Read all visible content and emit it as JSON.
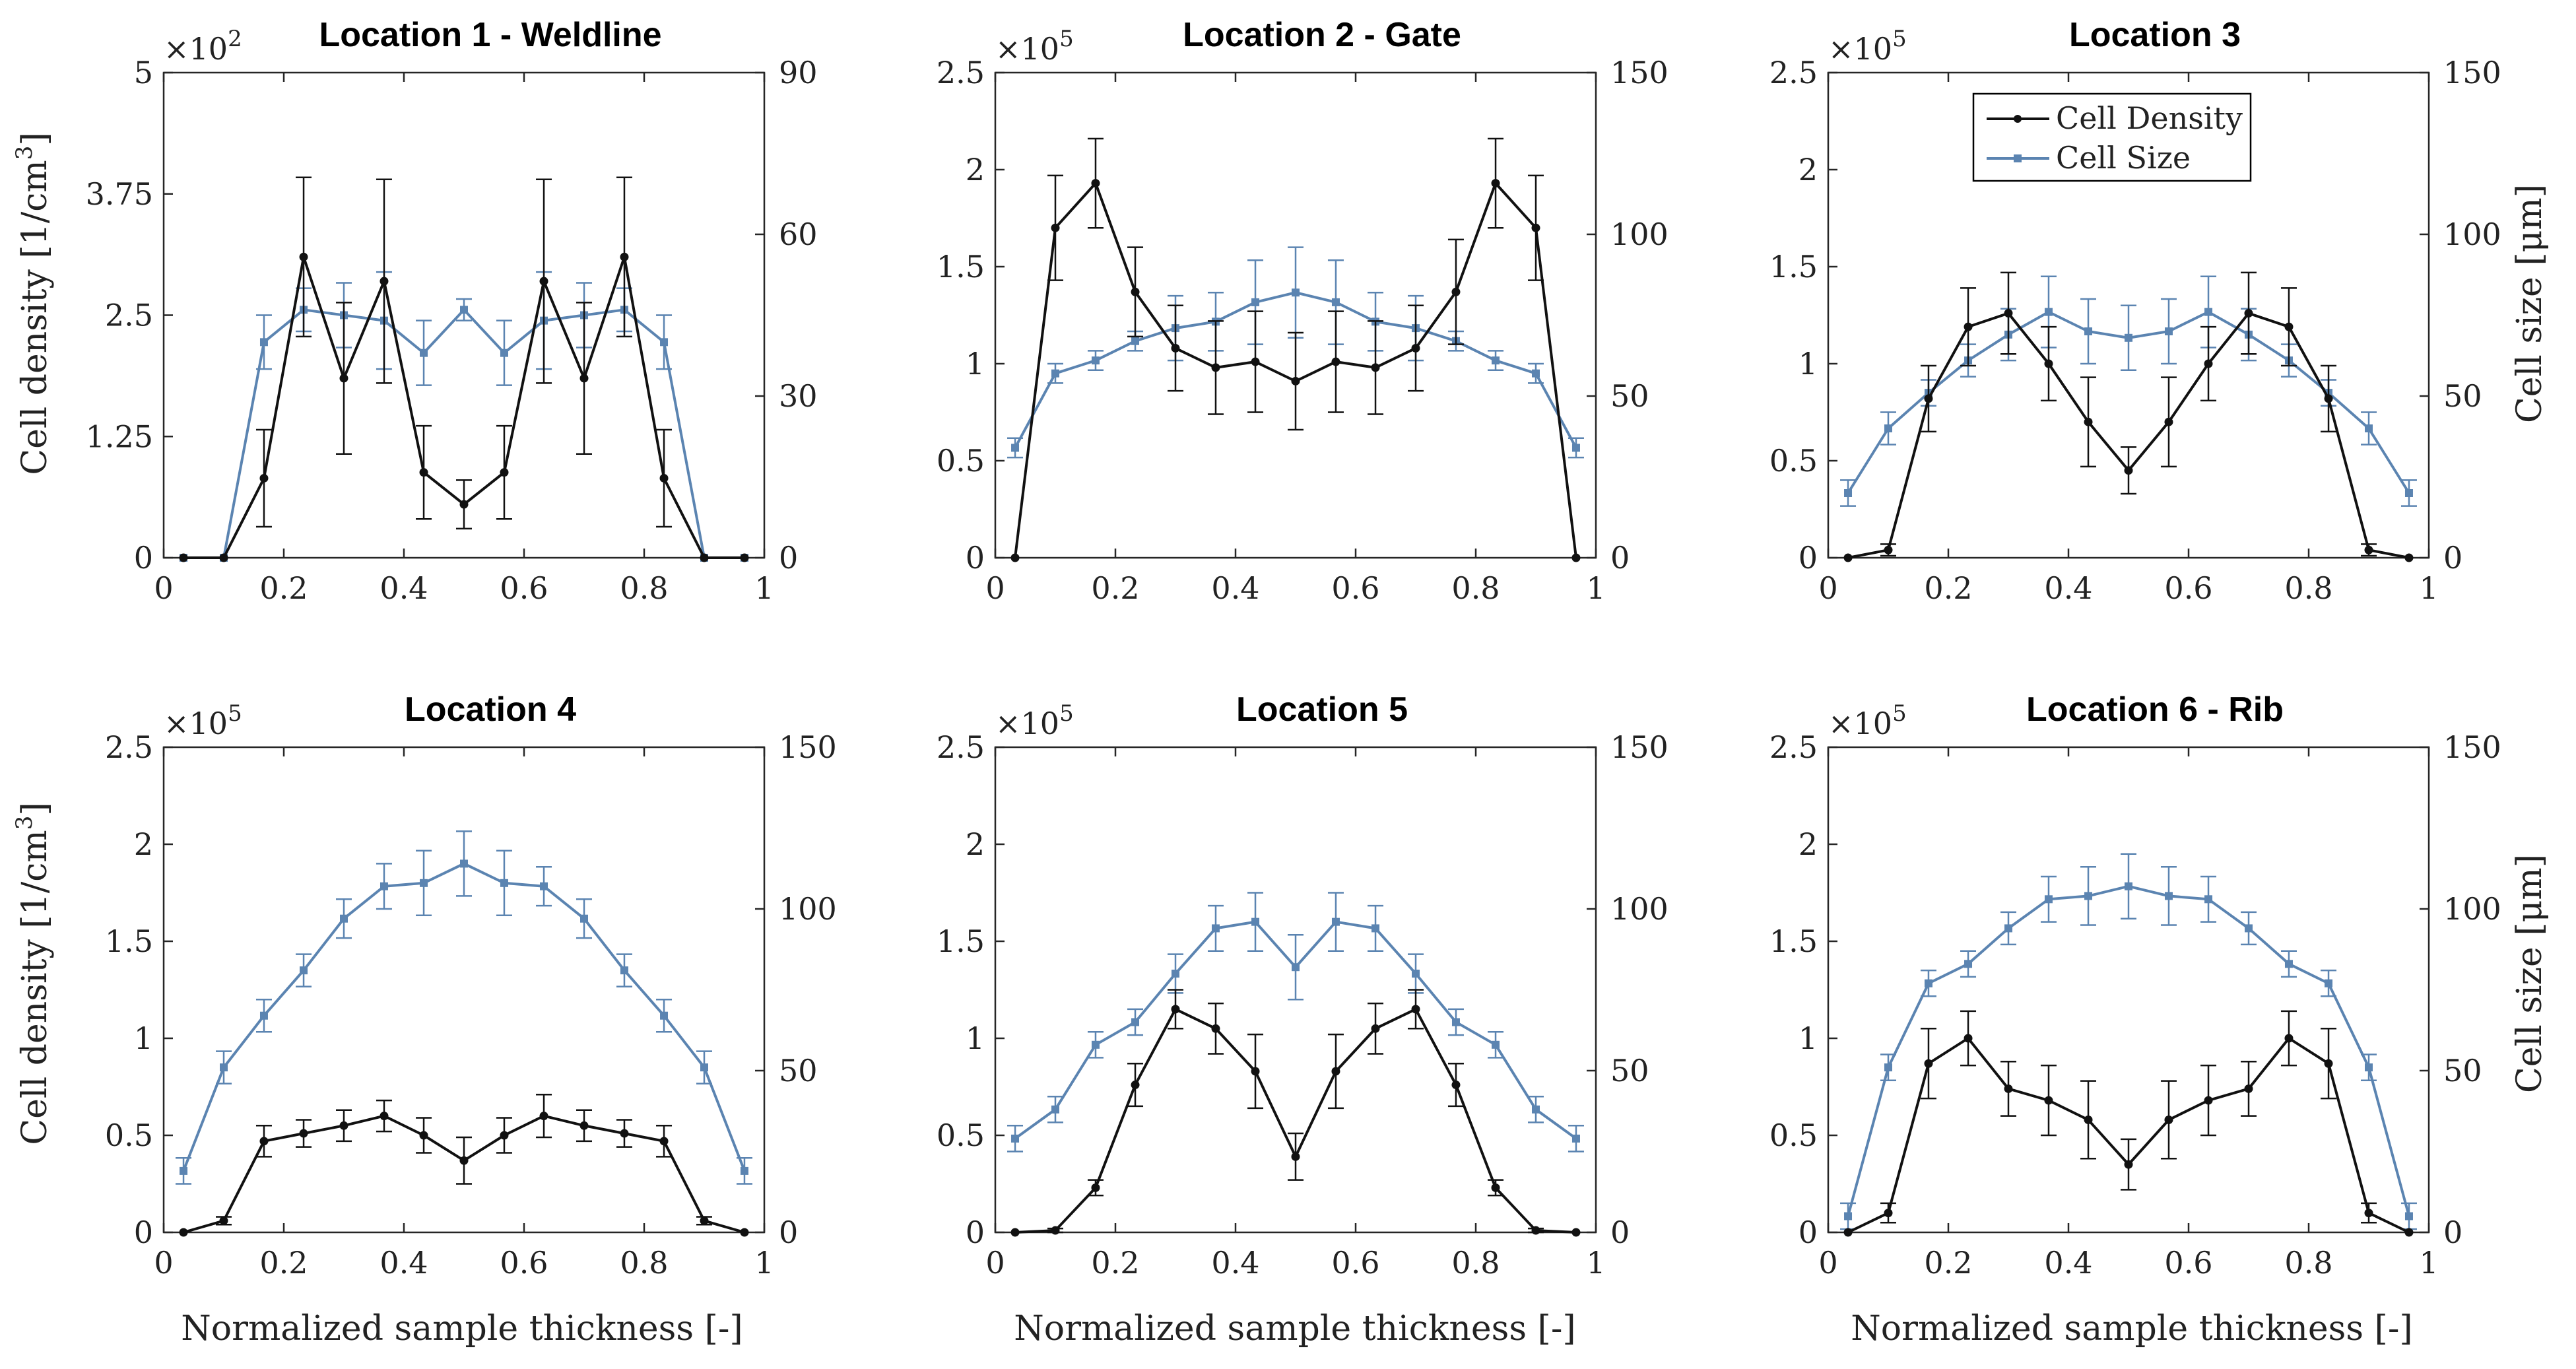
{
  "figure": {
    "x_label": "Normalized sample thickness [-]",
    "left_label": "Cell density [1/cm",
    "left_label_sup": "3",
    "left_label_end": "]",
    "right_label": "Cell size [μm]",
    "colors": {
      "density": "#111111",
      "size": "#5b84b1"
    },
    "legend": {
      "density": "Cell Density",
      "size": "Cell Size"
    }
  },
  "chart_data": [
    {
      "type": "line",
      "title": "Location 1 - Weldline",
      "multiplier": "×10",
      "exponent": "2",
      "xlim": [
        0,
        1
      ],
      "x_ticks": [
        0,
        0.2,
        0.4,
        0.6,
        0.8,
        1
      ],
      "x_tick_labels": [
        "0",
        "0.2",
        "0.4",
        "0.6",
        "0.8",
        "1"
      ],
      "ylim_left": [
        0,
        5
      ],
      "y_ticks_left": [
        0,
        1.25,
        2.5,
        3.75,
        5
      ],
      "y_tick_labels_left": [
        "0",
        "1.25",
        "2.5",
        "3.75",
        "5"
      ],
      "ylim_right": [
        0,
        90
      ],
      "y_ticks_right": [
        0,
        30,
        60,
        90
      ],
      "y_tick_labels_right": [
        "0",
        "30",
        "60",
        "90"
      ],
      "x": [
        0.033,
        0.1,
        0.167,
        0.233,
        0.3,
        0.367,
        0.433,
        0.5,
        0.567,
        0.633,
        0.7,
        0.767,
        0.833,
        0.9,
        0.967
      ],
      "series": [
        {
          "name": "Cell Density",
          "axis": "left",
          "values": [
            0,
            0,
            0.82,
            3.1,
            1.85,
            2.85,
            0.88,
            0.55,
            0.88,
            2.85,
            1.85,
            3.1,
            0.82,
            0,
            0
          ],
          "errors": [
            0,
            0,
            0.5,
            0.82,
            0.78,
            1.05,
            0.48,
            0.25,
            0.48,
            1.05,
            0.78,
            0.82,
            0.5,
            0,
            0
          ]
        },
        {
          "name": "Cell Size",
          "axis": "right",
          "values": [
            0,
            0,
            40,
            46,
            45,
            44,
            38,
            46,
            38,
            44,
            45,
            46,
            40,
            0,
            0
          ],
          "errors": [
            0,
            0,
            5,
            4,
            6,
            9,
            6,
            2,
            6,
            9,
            6,
            4,
            5,
            0,
            0
          ]
        }
      ]
    },
    {
      "type": "line",
      "title": "Location 2 - Gate",
      "multiplier": "×10",
      "exponent": "5",
      "xlim": [
        0,
        1
      ],
      "x_ticks": [
        0,
        0.2,
        0.4,
        0.6,
        0.8,
        1
      ],
      "x_tick_labels": [
        "0",
        "0.2",
        "0.4",
        "0.6",
        "0.8",
        "1"
      ],
      "ylim_left": [
        0,
        2.5
      ],
      "y_ticks_left": [
        0,
        0.5,
        1,
        1.5,
        2,
        2.5
      ],
      "y_tick_labels_left": [
        "0",
        "0.5",
        "1",
        "1.5",
        "2",
        "2.5"
      ],
      "ylim_right": [
        0,
        150
      ],
      "y_ticks_right": [
        0,
        50,
        100,
        150
      ],
      "y_tick_labels_right": [
        "0",
        "50",
        "100",
        "150"
      ],
      "x": [
        0.033,
        0.1,
        0.167,
        0.233,
        0.3,
        0.367,
        0.433,
        0.5,
        0.567,
        0.633,
        0.7,
        0.767,
        0.833,
        0.9,
        0.967
      ],
      "series": [
        {
          "name": "Cell Density",
          "axis": "left",
          "values": [
            0,
            1.7,
            1.93,
            1.37,
            1.08,
            0.98,
            1.01,
            0.91,
            1.01,
            0.98,
            1.08,
            1.37,
            1.93,
            1.7,
            0
          ],
          "errors": [
            0,
            0.27,
            0.23,
            0.23,
            0.22,
            0.24,
            0.26,
            0.25,
            0.26,
            0.24,
            0.22,
            0.27,
            0.23,
            0.27,
            0
          ]
        },
        {
          "name": "Cell Size",
          "axis": "right",
          "values": [
            34,
            57,
            61,
            67,
            71,
            73,
            79,
            82,
            79,
            73,
            71,
            67,
            61,
            57,
            34
          ],
          "errors": [
            3,
            3,
            3,
            3,
            10,
            9,
            13,
            14,
            13,
            9,
            10,
            3,
            3,
            3,
            3
          ]
        }
      ]
    },
    {
      "type": "line",
      "title": "Location 3",
      "multiplier": "×10",
      "exponent": "5",
      "xlim": [
        0,
        1
      ],
      "x_ticks": [
        0,
        0.2,
        0.4,
        0.6,
        0.8,
        1
      ],
      "x_tick_labels": [
        "0",
        "0.2",
        "0.4",
        "0.6",
        "0.8",
        "1"
      ],
      "ylim_left": [
        0,
        2.5
      ],
      "y_ticks_left": [
        0,
        0.5,
        1,
        1.5,
        2,
        2.5
      ],
      "y_tick_labels_left": [
        "0",
        "0.5",
        "1",
        "1.5",
        "2",
        "2.5"
      ],
      "ylim_right": [
        0,
        150
      ],
      "y_ticks_right": [
        0,
        50,
        100,
        150
      ],
      "y_tick_labels_right": [
        "0",
        "50",
        "100",
        "150"
      ],
      "x": [
        0.033,
        0.1,
        0.167,
        0.233,
        0.3,
        0.367,
        0.433,
        0.5,
        0.567,
        0.633,
        0.7,
        0.767,
        0.833,
        0.9,
        0.967
      ],
      "legend": [
        "Cell Density",
        "Cell Size"
      ],
      "series": [
        {
          "name": "Cell Density",
          "axis": "left",
          "values": [
            0,
            0.04,
            0.82,
            1.19,
            1.26,
            1.0,
            0.7,
            0.45,
            0.7,
            1.0,
            1.26,
            1.19,
            0.82,
            0.04,
            0
          ],
          "errors": [
            0,
            0.03,
            0.17,
            0.2,
            0.21,
            0.19,
            0.23,
            0.12,
            0.23,
            0.19,
            0.21,
            0.2,
            0.17,
            0.03,
            0
          ]
        },
        {
          "name": "Cell Size",
          "axis": "right",
          "values": [
            20,
            40,
            51,
            61,
            69,
            76,
            70,
            68,
            70,
            76,
            69,
            61,
            51,
            40,
            20
          ],
          "errors": [
            4,
            5,
            4,
            5,
            8,
            11,
            10,
            10,
            10,
            11,
            8,
            5,
            4,
            5,
            4
          ]
        }
      ]
    },
    {
      "type": "line",
      "title": "Location 4",
      "multiplier": "×10",
      "exponent": "5",
      "xlim": [
        0,
        1
      ],
      "x_ticks": [
        0,
        0.2,
        0.4,
        0.6,
        0.8,
        1
      ],
      "x_tick_labels": [
        "0",
        "0.2",
        "0.4",
        "0.6",
        "0.8",
        "1"
      ],
      "ylim_left": [
        0,
        2.5
      ],
      "y_ticks_left": [
        0,
        0.5,
        1,
        1.5,
        2,
        2.5
      ],
      "y_tick_labels_left": [
        "0",
        "0.5",
        "1",
        "1.5",
        "2",
        "2.5"
      ],
      "ylim_right": [
        0,
        150
      ],
      "y_ticks_right": [
        0,
        50,
        100,
        150
      ],
      "y_tick_labels_right": [
        "0",
        "50",
        "100",
        "150"
      ],
      "x": [
        0.033,
        0.1,
        0.167,
        0.233,
        0.3,
        0.367,
        0.433,
        0.5,
        0.567,
        0.633,
        0.7,
        0.767,
        0.833,
        0.9,
        0.967
      ],
      "series": [
        {
          "name": "Cell Density",
          "axis": "left",
          "values": [
            0,
            0.06,
            0.47,
            0.51,
            0.55,
            0.6,
            0.5,
            0.37,
            0.5,
            0.6,
            0.55,
            0.51,
            0.47,
            0.06,
            0
          ],
          "errors": [
            0,
            0.02,
            0.08,
            0.07,
            0.08,
            0.08,
            0.09,
            0.12,
            0.09,
            0.11,
            0.08,
            0.07,
            0.08,
            0.02,
            0
          ]
        },
        {
          "name": "Cell Size",
          "axis": "right",
          "values": [
            19,
            51,
            67,
            81,
            97,
            107,
            108,
            114,
            108,
            107,
            97,
            81,
            67,
            51,
            19
          ],
          "errors": [
            4,
            5,
            5,
            5,
            6,
            7,
            10,
            10,
            10,
            6,
            6,
            5,
            5,
            5,
            4
          ]
        }
      ]
    },
    {
      "type": "line",
      "title": "Location 5",
      "multiplier": "×10",
      "exponent": "5",
      "xlim": [
        0,
        1
      ],
      "x_ticks": [
        0,
        0.2,
        0.4,
        0.6,
        0.8,
        1
      ],
      "x_tick_labels": [
        "0",
        "0.2",
        "0.4",
        "0.6",
        "0.8",
        "1"
      ],
      "ylim_left": [
        0,
        2.5
      ],
      "y_ticks_left": [
        0,
        0.5,
        1,
        1.5,
        2,
        2.5
      ],
      "y_tick_labels_left": [
        "0",
        "0.5",
        "1",
        "1.5",
        "2",
        "2.5"
      ],
      "ylim_right": [
        0,
        150
      ],
      "y_ticks_right": [
        0,
        50,
        100,
        150
      ],
      "y_tick_labels_right": [
        "0",
        "50",
        "100",
        "150"
      ],
      "x": [
        0.033,
        0.1,
        0.167,
        0.233,
        0.3,
        0.367,
        0.433,
        0.5,
        0.567,
        0.633,
        0.7,
        0.767,
        0.833,
        0.9,
        0.967
      ],
      "series": [
        {
          "name": "Cell Density",
          "axis": "left",
          "values": [
            0,
            0.01,
            0.23,
            0.76,
            1.15,
            1.05,
            0.83,
            0.39,
            0.83,
            1.05,
            1.15,
            0.76,
            0.23,
            0.01,
            0
          ],
          "errors": [
            0,
            0.01,
            0.04,
            0.11,
            0.1,
            0.13,
            0.19,
            0.12,
            0.19,
            0.13,
            0.1,
            0.11,
            0.04,
            0.01,
            0
          ]
        },
        {
          "name": "Cell Size",
          "axis": "right",
          "values": [
            29,
            38,
            58,
            65,
            80,
            94,
            96,
            82,
            96,
            94,
            80,
            65,
            58,
            38,
            29
          ],
          "errors": [
            4,
            4,
            4,
            4,
            6,
            7,
            9,
            10,
            9,
            7,
            6,
            4,
            4,
            4,
            4
          ]
        }
      ]
    },
    {
      "type": "line",
      "title": "Location 6 - Rib",
      "multiplier": "×10",
      "exponent": "5",
      "xlim": [
        0,
        1
      ],
      "x_ticks": [
        0,
        0.2,
        0.4,
        0.6,
        0.8,
        1
      ],
      "x_tick_labels": [
        "0",
        "0.2",
        "0.4",
        "0.6",
        "0.8",
        "1"
      ],
      "ylim_left": [
        0,
        2.5
      ],
      "y_ticks_left": [
        0,
        0.5,
        1,
        1.5,
        2,
        2.5
      ],
      "y_tick_labels_left": [
        "0",
        "0.5",
        "1",
        "1.5",
        "2",
        "2.5"
      ],
      "ylim_right": [
        0,
        150
      ],
      "y_ticks_right": [
        0,
        50,
        100,
        150
      ],
      "y_tick_labels_right": [
        "0",
        "50",
        "100",
        "150"
      ],
      "x": [
        0.033,
        0.1,
        0.167,
        0.233,
        0.3,
        0.367,
        0.433,
        0.5,
        0.567,
        0.633,
        0.7,
        0.767,
        0.833,
        0.9,
        0.967
      ],
      "series": [
        {
          "name": "Cell Density",
          "axis": "left",
          "values": [
            0,
            0.1,
            0.87,
            1.0,
            0.74,
            0.68,
            0.58,
            0.35,
            0.58,
            0.68,
            0.74,
            1.0,
            0.87,
            0.1,
            0
          ],
          "errors": [
            0,
            0.05,
            0.18,
            0.14,
            0.14,
            0.18,
            0.2,
            0.13,
            0.2,
            0.18,
            0.14,
            0.14,
            0.18,
            0.05,
            0
          ]
        },
        {
          "name": "Cell Size",
          "axis": "right",
          "values": [
            5,
            51,
            77,
            83,
            94,
            103,
            104,
            107,
            104,
            103,
            94,
            83,
            77,
            51,
            5
          ],
          "errors": [
            4,
            4,
            4,
            4,
            5,
            7,
            9,
            10,
            9,
            7,
            5,
            4,
            4,
            4,
            4
          ]
        }
      ]
    }
  ]
}
